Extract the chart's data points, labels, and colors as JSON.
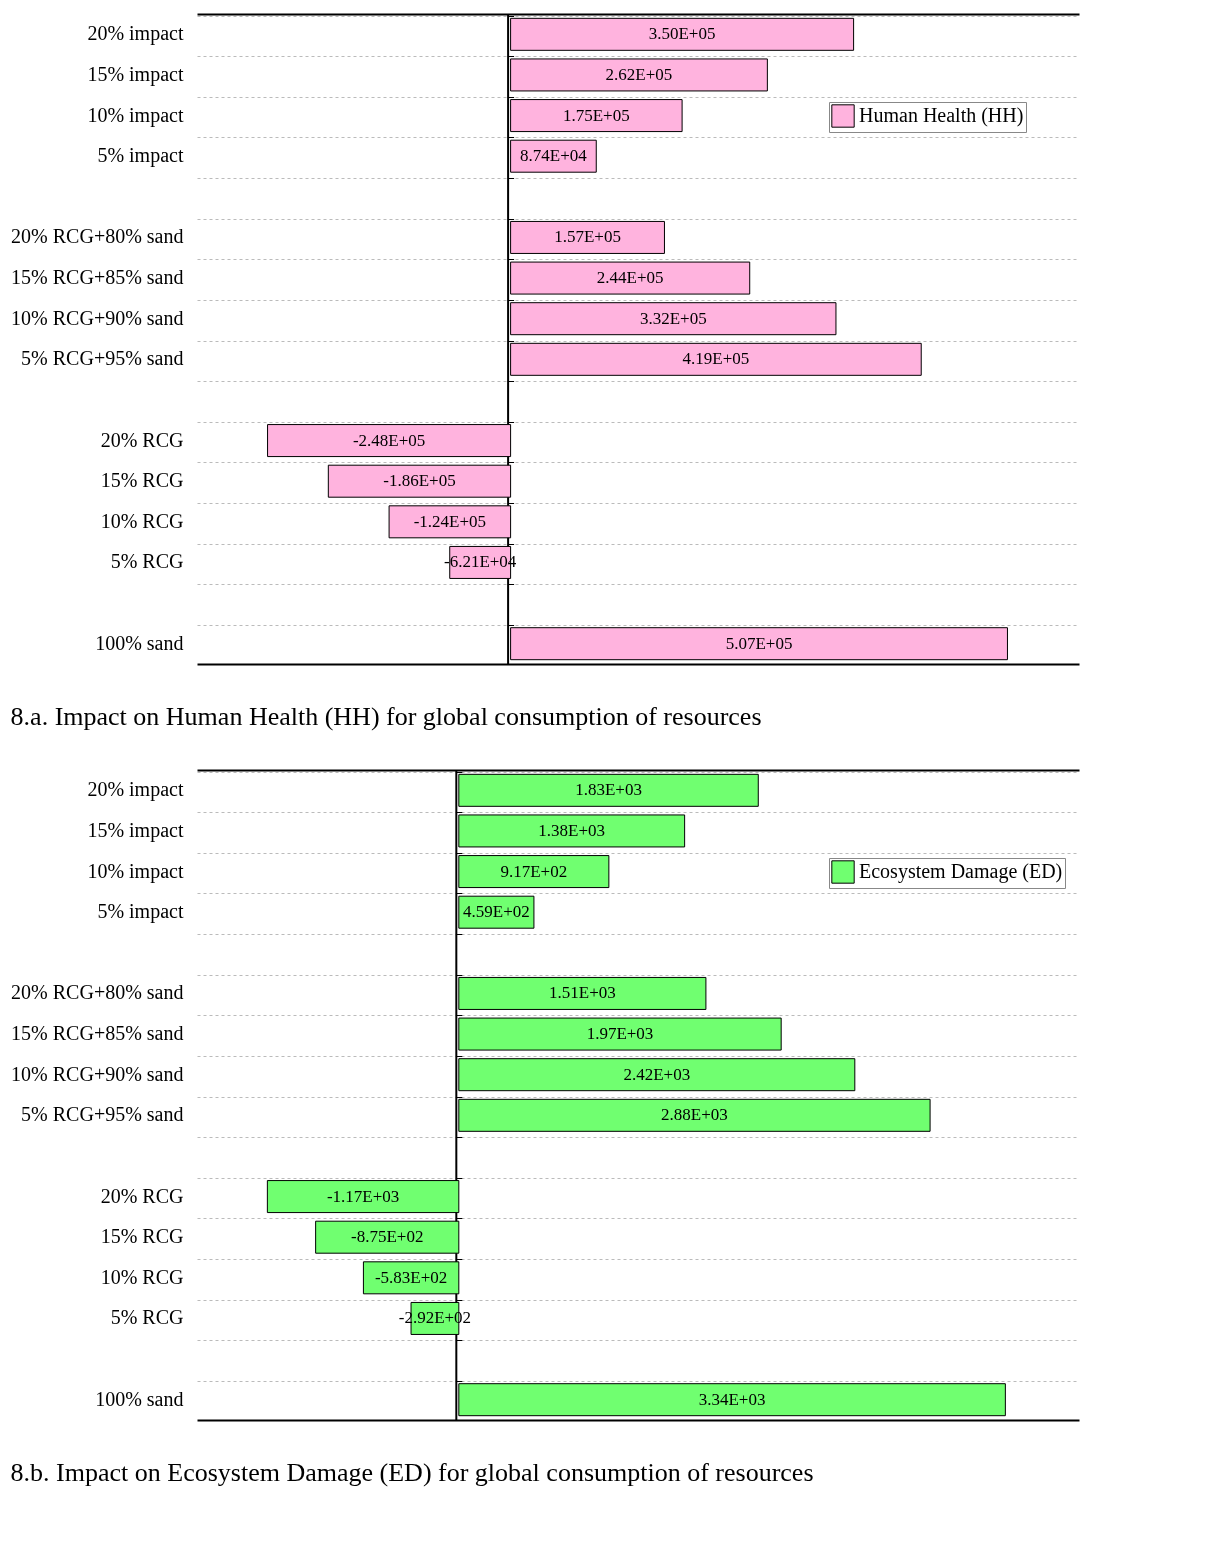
{
  "chart_data": [
    {
      "type": "bar",
      "orientation": "horizontal",
      "title": "8.a. Impact on Human Health (HH) for global consumption of resources",
      "categories": [
        "20% impact",
        "15% impact",
        "10% impact",
        "5% impact",
        null,
        "20% RCG+80% sand",
        "15% RCG+85% sand",
        "10% RCG+90% sand",
        "5% RCG+95% sand",
        null,
        "20% RCG",
        "15% RCG",
        "10% RCG",
        "5% RCG",
        null,
        "100% sand"
      ],
      "series": [
        {
          "name": "Human Health (HH)",
          "color": "#ffb3de",
          "values": [
            350000,
            262000,
            175000,
            87400,
            null,
            157000,
            244000,
            332000,
            419000,
            null,
            -248000,
            -186000,
            -124000,
            -62100,
            null,
            507000
          ],
          "value_labels": [
            "3.50E+05",
            "2.62E+05",
            "1.75E+05",
            "8.74E+04",
            null,
            "1.57E+05",
            "2.44E+05",
            "3.32E+05",
            "4.19E+05",
            null,
            "-2.48E+05",
            "-1.86E+05",
            "-1.24E+05",
            "-6.21E+04",
            null,
            "5.07E+05"
          ]
        }
      ],
      "xlim": [
        -320000,
        580000
      ],
      "tick_labels": "y",
      "grid": "y",
      "legend": "top right"
    },
    {
      "type": "bar",
      "orientation": "horizontal",
      "title": "8.b. Impact on Ecosystem Damage (ED) for global consumption of resources",
      "categories": [
        "20% impact",
        "15% impact",
        "10% impact",
        "5% impact",
        null,
        "20% RCG+80% sand",
        "15% RCG+85% sand",
        "10% RCG+90% sand",
        "5% RCG+95% sand",
        null,
        "20% RCG",
        "15% RCG",
        "10% RCG",
        "5% RCG",
        null,
        "100% sand"
      ],
      "series": [
        {
          "name": "Ecosystem Damage (ED)",
          "color": "#70ff70",
          "values": [
            1830,
            1380,
            917,
            459,
            null,
            1510,
            1970,
            2420,
            2880,
            null,
            -1170,
            -875,
            -583,
            -292,
            null,
            3340
          ],
          "value_labels": [
            "1.83E+03",
            "1.38E+03",
            "9.17E+02",
            "4.59E+02",
            null,
            "1.51E+03",
            "1.97E+03",
            "2.42E+03",
            "2.88E+03",
            null,
            "-1.17E+03",
            "-8.75E+02",
            "-5.83E+02",
            "-2.92E+02",
            null,
            "3.34E+03"
          ]
        }
      ],
      "xlim": [
        -1600,
        3790
      ],
      "tick_labels": "y",
      "grid": "y",
      "legend": "top right"
    }
  ]
}
